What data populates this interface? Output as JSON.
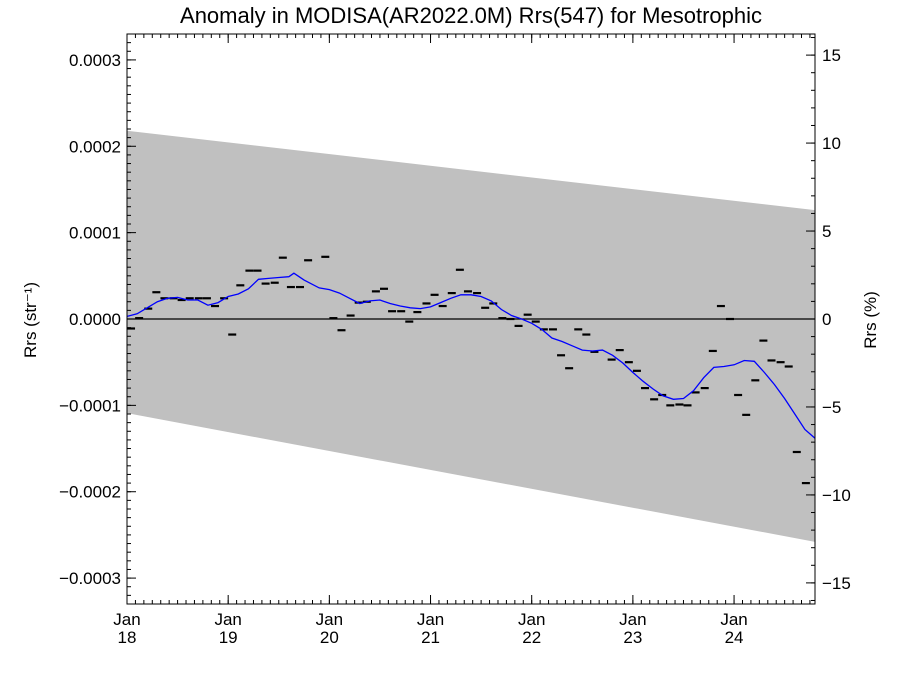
{
  "chart_data": {
    "type": "line",
    "title": "Anomaly in MODISA(AR2022.0M) Rrs(547) for Mesotrophic",
    "ylabel_left": "Rrs (str⁻¹)",
    "ylabel_right": "Rrs (%)",
    "xlabel": "",
    "x_range": [
      2018.0,
      2024.8
    ],
    "ylim_left": [
      -0.00033,
      0.00033
    ],
    "ylim_right": [
      -16.2,
      16.2
    ],
    "grid": false,
    "legend": "none",
    "colors": {
      "band": "#c0c0c0",
      "smooth_line": "#0000ff",
      "points": "#000000",
      "zero_line": "#000000"
    },
    "x_ticks": [
      {
        "value": 2018,
        "month": "Jan",
        "year": "18"
      },
      {
        "value": 2019,
        "month": "Jan",
        "year": "19"
      },
      {
        "value": 2020,
        "month": "Jan",
        "year": "20"
      },
      {
        "value": 2021,
        "month": "Jan",
        "year": "21"
      },
      {
        "value": 2022,
        "month": "Jan",
        "year": "22"
      },
      {
        "value": 2023,
        "month": "Jan",
        "year": "23"
      },
      {
        "value": 2024,
        "month": "Jan",
        "year": "24"
      }
    ],
    "y_ticks_left": [
      {
        "value": 0.0003,
        "label": "0.0003"
      },
      {
        "value": 0.0002,
        "label": "0.0002"
      },
      {
        "value": 0.0001,
        "label": "0.0001"
      },
      {
        "value": 0.0,
        "label": "0.0000"
      },
      {
        "value": -0.0001,
        "label": "−0.0001"
      },
      {
        "value": -0.0002,
        "label": "−0.0002"
      },
      {
        "value": -0.0003,
        "label": "−0.0003"
      }
    ],
    "y_ticks_right": [
      {
        "value": 15,
        "label": "15"
      },
      {
        "value": 10,
        "label": "10"
      },
      {
        "value": 5,
        "label": "5"
      },
      {
        "value": 0,
        "label": "0"
      },
      {
        "value": -5,
        "label": "−5"
      },
      {
        "value": -10,
        "label": "−10"
      },
      {
        "value": -15,
        "label": "−15"
      }
    ],
    "band": {
      "upper": [
        [
          2018.0,
          0.000218
        ],
        [
          2024.8,
          0.000126
        ]
      ],
      "lower": [
        [
          2018.0,
          -0.000109
        ],
        [
          2024.8,
          -0.000258
        ]
      ]
    },
    "smooth_series": {
      "x": [
        2018.0,
        2018.1,
        2018.2,
        2018.3,
        2018.4,
        2018.5,
        2018.6,
        2018.7,
        2018.8,
        2018.9,
        2019.0,
        2019.1,
        2019.2,
        2019.3,
        2019.4,
        2019.5,
        2019.6,
        2019.65,
        2019.75,
        2019.9,
        2020.0,
        2020.1,
        2020.2,
        2020.3,
        2020.4,
        2020.5,
        2020.6,
        2020.7,
        2020.8,
        2020.9,
        2021.0,
        2021.1,
        2021.2,
        2021.3,
        2021.4,
        2021.5,
        2021.6,
        2021.7,
        2021.8,
        2021.9,
        2022.0,
        2022.1,
        2022.2,
        2022.3,
        2022.4,
        2022.5,
        2022.6,
        2022.7,
        2022.8,
        2022.9,
        2023.0,
        2023.1,
        2023.2,
        2023.3,
        2023.4,
        2023.5,
        2023.6,
        2023.7,
        2023.8,
        2023.9,
        2024.0,
        2024.1,
        2024.2,
        2024.3,
        2024.4,
        2024.5,
        2024.6,
        2024.7,
        2024.8
      ],
      "y": [
        3e-06,
        6e-06,
        1.3e-05,
        2e-05,
        2.4e-05,
        2.5e-05,
        2.2e-05,
        2.2e-05,
        1.6e-05,
        1.9e-05,
        2.6e-05,
        2.9e-05,
        3.5e-05,
        4.6e-05,
        4.7e-05,
        4.8e-05,
        4.9e-05,
        5.3e-05,
        4.5e-05,
        3.6e-05,
        3.4e-05,
        3e-05,
        2.4e-05,
        1.8e-05,
        2.1e-05,
        2.2e-05,
        1.8e-05,
        1.5e-05,
        1.3e-05,
        1.2e-05,
        1.4e-05,
        1.9e-05,
        2.4e-05,
        2.8e-05,
        2.8e-05,
        2.6e-05,
        2.1e-05,
        1.1e-05,
        4e-06,
        0.0,
        -5e-06,
        -1.2e-05,
        -2.2e-05,
        -2.6e-05,
        -3.1e-05,
        -3.6e-05,
        -3.7e-05,
        -3.6e-05,
        -4.2e-05,
        -5.1e-05,
        -6.2e-05,
        -7.2e-05,
        -8.1e-05,
        -8.9e-05,
        -9.3e-05,
        -9.2e-05,
        -8.3e-05,
        -6.8e-05,
        -5.6e-05,
        -5.5e-05,
        -5.3e-05,
        -4.8e-05,
        -4.9e-05,
        -6.2e-05,
        -7.6e-05,
        -9.2e-05,
        -0.00011,
        -0.000128,
        -0.000138
      ]
    },
    "monthly_points": {
      "x": [
        2018.04,
        2018.12,
        2018.21,
        2018.29,
        2018.37,
        2018.46,
        2018.54,
        2018.62,
        2018.71,
        2018.79,
        2018.87,
        2018.96,
        2019.04,
        2019.12,
        2019.21,
        2019.29,
        2019.37,
        2019.46,
        2019.54,
        2019.62,
        2019.71,
        2019.79,
        2019.96,
        2020.04,
        2020.12,
        2020.21,
        2020.29,
        2020.37,
        2020.46,
        2020.54,
        2020.62,
        2020.71,
        2020.79,
        2020.87,
        2020.96,
        2021.04,
        2021.12,
        2021.21,
        2021.29,
        2021.37,
        2021.46,
        2021.54,
        2021.62,
        2021.71,
        2021.79,
        2021.87,
        2021.96,
        2022.04,
        2022.12,
        2022.21,
        2022.29,
        2022.37,
        2022.46,
        2022.54,
        2022.62,
        2022.79,
        2022.87,
        2022.96,
        2023.04,
        2023.12,
        2023.21,
        2023.29,
        2023.37,
        2023.46,
        2023.54,
        2023.62,
        2023.71,
        2023.79,
        2023.87,
        2023.96,
        2024.04,
        2024.12,
        2024.21,
        2024.29,
        2024.37,
        2024.46,
        2024.54,
        2024.62,
        2024.71
      ],
      "y": [
        -1.1e-05,
        1e-06,
        1.2e-05,
        3.1e-05,
        2.4e-05,
        2.4e-05,
        2.2e-05,
        2.4e-05,
        2.4e-05,
        2.4e-05,
        1.5e-05,
        2.4e-05,
        -1.8e-05,
        3.9e-05,
        5.6e-05,
        5.6e-05,
        4.1e-05,
        4.2e-05,
        7.1e-05,
        3.7e-05,
        3.7e-05,
        6.8e-05,
        7.2e-05,
        1e-06,
        -1.3e-05,
        4e-06,
        1.9e-05,
        2e-05,
        3.2e-05,
        3.5e-05,
        9e-06,
        9e-06,
        -3e-06,
        8e-06,
        1.8e-05,
        2.8e-05,
        1.5e-05,
        3e-05,
        5.7e-05,
        3.2e-05,
        3e-05,
        1.3e-05,
        1.8e-05,
        1e-06,
        0.0,
        -8e-06,
        5e-06,
        -3e-06,
        -1.2e-05,
        -1.2e-05,
        -4.2e-05,
        -5.7e-05,
        -1.2e-05,
        -1.8e-05,
        -3.8e-05,
        -4.7e-05,
        -3.6e-05,
        -5e-05,
        -6e-05,
        -8e-05,
        -9.3e-05,
        -8.8e-05,
        -0.0001,
        -9.9e-05,
        -0.0001,
        -8.5e-05,
        -8e-05,
        -3.7e-05,
        1.5e-05,
        0.0,
        -8.8e-05,
        -0.000111,
        -7.1e-05,
        -2.5e-05,
        -4.8e-05,
        -5e-05,
        -5.5e-05,
        -0.000154,
        -0.00019
      ]
    }
  }
}
